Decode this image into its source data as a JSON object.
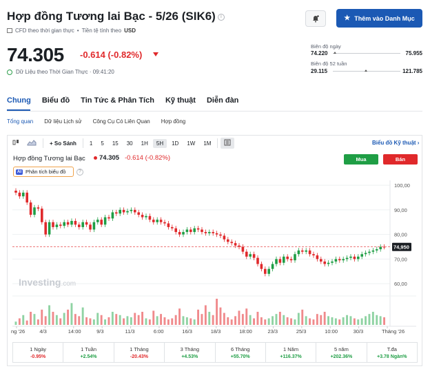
{
  "header": {
    "title": "Hợp đồng Tương lai Bạc - 5/26 (SIK6)",
    "sub_type": "CFD theo thời gian thực",
    "currency_label": "Tiền tệ tính theo",
    "currency": "USD",
    "watchlist_label": "Thêm vào Danh Mục"
  },
  "quote": {
    "price": "74.305",
    "change": "-0.614 (-0.82%)",
    "realtime_label": "Dữ Liệu theo Thời Gian Thực · 09:41:20"
  },
  "ranges": {
    "day_label": "Biên độ ngày",
    "day_low": "74.220",
    "day_high": "75.955",
    "day_pos": 0.03,
    "year_label": "Biên độ 52 tuần",
    "year_low": "29.115",
    "year_high": "121.785",
    "year_pos": 0.49
  },
  "tabs": [
    "Chung",
    "Biểu đồ",
    "Tin Tức & Phân Tích",
    "Kỹ thuật",
    "Diễn đàn"
  ],
  "subtabs": [
    "Tổng quan",
    "Dữ liệu Lịch sử",
    "Công Cụ Có Liên Quan",
    "Hợp đồng"
  ],
  "toolbar": {
    "compare": "So Sánh",
    "intervals": [
      "1",
      "5",
      "15",
      "30",
      "1H",
      "5H",
      "1D",
      "1W",
      "1M"
    ],
    "active_interval": "5H",
    "tech_chart": "Biểu đồ Kỹ thuật"
  },
  "chart_legend": {
    "name": "Hợp đồng Tương lai Bạc",
    "price": "74.305",
    "change": "-0.614 (-0.82%)",
    "buy": "Mua",
    "sell": "Bán",
    "ai_badge": "AI",
    "ai_label": "Phân tích biểu đồ"
  },
  "watermark": "Investing",
  "watermark_suffix": ".com",
  "chart_data": {
    "type": "candlestick",
    "ylim": [
      55,
      102
    ],
    "y_ticks": [
      "100,00",
      "90,00",
      "80,00",
      "70,00",
      "60,00"
    ],
    "y_tick_values": [
      100,
      90,
      80,
      70,
      60
    ],
    "last_price_label": "74,950",
    "last_price": 74.95,
    "x_labels": [
      "ng '26",
      "4/3",
      "14:00",
      "9/3",
      "11/3",
      "6:00",
      "16/3",
      "18/3",
      "18:00",
      "23/3",
      "25/3",
      "10:00",
      "30/3",
      "Tháng '26"
    ],
    "closes": [
      97,
      95.5,
      97,
      93,
      88,
      91,
      90.5,
      85,
      80,
      85,
      83,
      84,
      83.5,
      85,
      84,
      85.5,
      84,
      83,
      85,
      84,
      82,
      85,
      86,
      84,
      87,
      86.5,
      89,
      88.5,
      90,
      89,
      89.5,
      90,
      89,
      88,
      87,
      87.5,
      86,
      85,
      86,
      85,
      84.5,
      83,
      82.5,
      81,
      80,
      81,
      82,
      81,
      82.5,
      82,
      81,
      80.5,
      81,
      80.5,
      80,
      79.5,
      78,
      77,
      76.5,
      75.5,
      75,
      73,
      71,
      72,
      70.5,
      68,
      66,
      64,
      66,
      68,
      70,
      68.5,
      71,
      70,
      69.5,
      72,
      73.5,
      73,
      73.5,
      72,
      71.5,
      70,
      69,
      68,
      68.5,
      69,
      70,
      69.5,
      70,
      70.5,
      71,
      70,
      71,
      72,
      72.5,
      73,
      73.5,
      74,
      75,
      74.95
    ]
  },
  "volume_data": [
    3,
    6,
    9,
    4,
    12,
    10,
    5,
    14,
    8,
    18,
    12,
    9,
    6,
    11,
    14,
    20,
    10,
    8,
    16,
    7,
    6,
    5,
    11,
    9,
    5,
    7,
    12,
    10,
    9,
    6,
    8,
    7,
    11,
    9,
    12,
    6,
    5,
    13,
    8,
    10,
    7,
    5,
    6,
    9,
    15,
    8,
    7,
    6,
    5,
    14,
    10,
    18,
    12,
    9,
    24,
    16,
    11,
    7,
    5,
    8,
    13,
    10,
    15,
    9,
    6,
    12,
    7,
    5,
    6,
    8,
    10,
    12,
    9,
    7,
    6,
    5,
    11,
    14,
    8,
    6,
    5,
    10,
    9,
    12,
    8,
    7,
    6,
    5,
    7,
    9,
    8,
    6,
    5,
    6,
    8,
    10,
    12,
    9,
    8,
    7
  ],
  "performance": [
    {
      "label": "1 Ngày",
      "value": "-0.95%",
      "color": "#e0292b"
    },
    {
      "label": "1 Tuần",
      "value": "+2.54%",
      "color": "#1f9e45"
    },
    {
      "label": "1 Tháng",
      "value": "-20.43%",
      "color": "#e0292b"
    },
    {
      "label": "3 Tháng",
      "value": "+4.53%",
      "color": "#1f9e45"
    },
    {
      "label": "6 Tháng",
      "value": "+55.70%",
      "color": "#1f9e45"
    },
    {
      "label": "1 Năm",
      "value": "+116.37%",
      "color": "#1f9e45"
    },
    {
      "label": "5 năm",
      "value": "+202.36%",
      "color": "#1f9e45"
    },
    {
      "label": "T.đa",
      "value": "+3.78 Ngàn%",
      "color": "#1f9e45"
    }
  ]
}
